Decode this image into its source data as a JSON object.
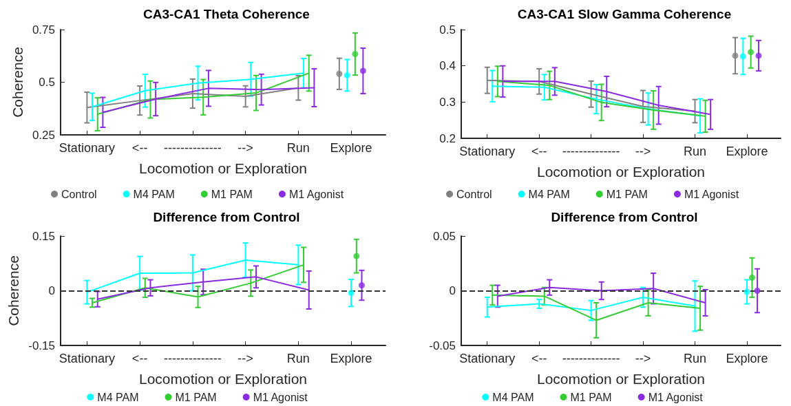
{
  "chart_data": [
    {
      "type": "line",
      "title": "CA3-CA1 Theta Coherence",
      "xlabel": "Locomotion or Exploration",
      "ylabel": "Coherence",
      "categories": [
        "Stationary",
        "<--",
        "--------------",
        "-->",
        "Run",
        "Explore"
      ],
      "ylim": [
        0.25,
        0.75
      ],
      "yticks": [
        0.25,
        0.5,
        0.75
      ],
      "grid": false,
      "legend": "bottom",
      "series": [
        {
          "name": "Control",
          "color": "#808080",
          "values": [
            0.38,
            0.413,
            0.446,
            0.433,
            0.473,
            null
          ],
          "errors": [
            0.073,
            0.069,
            0.069,
            0.05,
            0.058,
            null
          ]
        },
        {
          "name": "M4 PAM",
          "color": "#00ffff",
          "values": [
            0.383,
            0.46,
            0.496,
            0.514,
            0.543,
            null
          ],
          "errors": [
            0.065,
            0.078,
            0.08,
            0.08,
            0.07,
            null
          ]
        },
        {
          "name": "M1 PAM",
          "color": "#33cc33",
          "values": [
            0.348,
            0.418,
            0.429,
            0.449,
            0.543,
            null
          ],
          "errors": [
            0.078,
            0.088,
            0.084,
            0.083,
            0.085,
            null
          ]
        },
        {
          "name": "M1 Agonist",
          "color": "#8a2be2",
          "values": [
            0.357,
            0.42,
            0.471,
            0.465,
            0.474,
            null
          ],
          "errors": [
            0.071,
            0.079,
            0.085,
            0.073,
            0.09,
            null
          ]
        },
        {
          "type": "scatter",
          "marker": "circle",
          "color": "#808080",
          "values": [
            null,
            null,
            null,
            null,
            null,
            0.54
          ],
          "errors": [
            null,
            null,
            null,
            null,
            null,
            0.074
          ]
        },
        {
          "type": "scatter",
          "marker": "circle",
          "color": "#00ffff",
          "values": [
            null,
            null,
            null,
            null,
            null,
            0.533
          ],
          "errors": [
            null,
            null,
            null,
            null,
            null,
            0.075
          ]
        },
        {
          "type": "scatter",
          "marker": "circle",
          "color": "#33cc33",
          "values": [
            null,
            null,
            null,
            null,
            null,
            0.634
          ],
          "errors": [
            null,
            null,
            null,
            null,
            null,
            0.1
          ]
        },
        {
          "type": "scatter",
          "marker": "circle",
          "color": "#8a2be2",
          "values": [
            null,
            null,
            null,
            null,
            null,
            0.554
          ],
          "errors": [
            null,
            null,
            null,
            null,
            null,
            0.108
          ]
        }
      ]
    },
    {
      "type": "line",
      "title": "CA3-CA1 Slow Gamma Coherence",
      "xlabel": "Locomotion or Exploration",
      "categories": [
        "Stationary",
        "<--",
        "--------------",
        "-->",
        "Run",
        "Explore"
      ],
      "ylim": [
        0.2,
        0.5
      ],
      "yticks": [
        0.2,
        0.3,
        0.4,
        0.5
      ],
      "grid": false,
      "legend": "bottom",
      "series": [
        {
          "name": "Control",
          "color": "#808080",
          "values": [
            0.36,
            0.357,
            0.322,
            0.288,
            0.275,
            null
          ],
          "errors": [
            0.036,
            0.035,
            0.036,
            0.044,
            0.032,
            null
          ]
        },
        {
          "name": "M4 PAM",
          "color": "#00ffff",
          "values": [
            0.344,
            0.341,
            0.308,
            0.281,
            0.262,
            null
          ],
          "errors": [
            0.043,
            0.035,
            0.04,
            0.044,
            0.047,
            null
          ]
        },
        {
          "name": "M1 PAM",
          "color": "#33cc33",
          "values": [
            0.357,
            0.346,
            0.299,
            0.278,
            0.261,
            null
          ],
          "errors": [
            0.042,
            0.039,
            0.05,
            0.053,
            0.044,
            null
          ]
        },
        {
          "name": "M1 Agonist",
          "color": "#8a2be2",
          "values": [
            0.357,
            0.357,
            0.329,
            0.291,
            0.266,
            null
          ],
          "errors": [
            0.043,
            0.038,
            0.042,
            0.052,
            0.041,
            null
          ]
        },
        {
          "type": "scatter",
          "marker": "circle",
          "color": "#808080",
          "values": [
            null,
            null,
            null,
            null,
            null,
            0.428
          ],
          "errors": [
            null,
            null,
            null,
            null,
            null,
            0.05
          ]
        },
        {
          "type": "scatter",
          "marker": "circle",
          "color": "#00ffff",
          "values": [
            null,
            null,
            null,
            null,
            null,
            0.426
          ],
          "errors": [
            null,
            null,
            null,
            null,
            null,
            0.05
          ]
        },
        {
          "type": "scatter",
          "marker": "circle",
          "color": "#33cc33",
          "values": [
            null,
            null,
            null,
            null,
            null,
            0.438
          ],
          "errors": [
            null,
            null,
            null,
            null,
            null,
            0.044
          ]
        },
        {
          "type": "scatter",
          "marker": "circle",
          "color": "#8a2be2",
          "values": [
            null,
            null,
            null,
            null,
            null,
            0.428
          ],
          "errors": [
            null,
            null,
            null,
            null,
            null,
            0.042
          ]
        }
      ]
    },
    {
      "type": "line",
      "title": "Difference from Control",
      "xlabel": "Locomotion or Exploration",
      "ylabel": "Coherence",
      "categories": [
        "Stationary",
        "<--",
        "--------------",
        "-->",
        "Run",
        "Explore"
      ],
      "ylim": [
        -0.15,
        0.15
      ],
      "yticks": [
        -0.15,
        0,
        0.15
      ],
      "grid": false,
      "legend": "bottom",
      "ref_lines": [
        {
          "axis": "y",
          "value": 0,
          "color": "#333333",
          "line_style": "dashed"
        }
      ],
      "series": [
        {
          "name": "M4 PAM",
          "color": "#00ffff",
          "values": [
            -0.004,
            0.048,
            0.049,
            0.084,
            0.071,
            null
          ],
          "errors": [
            0.032,
            0.046,
            0.049,
            0.047,
            0.054,
            null
          ]
        },
        {
          "name": "M1 PAM",
          "color": "#33cc33",
          "values": [
            -0.033,
            0.008,
            -0.017,
            0.021,
            0.071,
            null
          ],
          "errors": [
            0.012,
            0.026,
            0.029,
            0.036,
            0.048,
            null
          ]
        },
        {
          "name": "M1 Agonist",
          "color": "#8a2be2",
          "values": [
            -0.023,
            0.008,
            0.024,
            0.038,
            0.002,
            null
          ],
          "errors": [
            0.021,
            0.022,
            0.035,
            0.03,
            0.052,
            null
          ]
        },
        {
          "type": "scatter",
          "marker": "circle",
          "color": "#00ffff",
          "values": [
            null,
            null,
            null,
            null,
            null,
            -0.006
          ],
          "errors": [
            null,
            null,
            null,
            null,
            null,
            0.037
          ]
        },
        {
          "type": "scatter",
          "marker": "circle",
          "color": "#33cc33",
          "values": [
            null,
            null,
            null,
            null,
            null,
            0.095
          ],
          "errors": [
            null,
            null,
            null,
            null,
            null,
            0.046
          ]
        },
        {
          "type": "scatter",
          "marker": "circle",
          "color": "#8a2be2",
          "values": [
            null,
            null,
            null,
            null,
            null,
            0.015
          ],
          "errors": [
            null,
            null,
            null,
            null,
            null,
            0.041
          ]
        }
      ]
    },
    {
      "type": "line",
      "title": "Difference from Control",
      "xlabel": "Locomotion or Exploration",
      "categories": [
        "Stationary",
        "<--",
        "--------------",
        "-->",
        "Run",
        "Explore"
      ],
      "ylim": [
        -0.05,
        0.05
      ],
      "yticks": [
        -0.05,
        0,
        0.05
      ],
      "grid": false,
      "legend": "bottom",
      "ref_lines": [
        {
          "axis": "y",
          "value": 0,
          "color": "#333333",
          "line_style": "dashed"
        }
      ],
      "series": [
        {
          "name": "M4 PAM",
          "color": "#00ffff",
          "values": [
            -0.015,
            -0.012,
            -0.018,
            -0.006,
            -0.014,
            null
          ],
          "errors": [
            0.009,
            0.004,
            0.009,
            0.009,
            0.023,
            null
          ]
        },
        {
          "name": "M1 PAM",
          "color": "#33cc33",
          "values": [
            -0.004,
            -0.005,
            -0.027,
            -0.011,
            -0.016,
            null
          ],
          "errors": [
            0.009,
            0.008,
            0.016,
            0.012,
            0.02,
            null
          ]
        },
        {
          "name": "M1 Agonist",
          "color": "#8a2be2",
          "values": [
            -0.005,
            0.003,
            0,
            0.002,
            -0.011,
            null
          ],
          "errors": [
            0.01,
            0.007,
            0.008,
            0.014,
            0.012,
            null
          ]
        },
        {
          "type": "scatter",
          "marker": "circle",
          "color": "#00ffff",
          "values": [
            null,
            null,
            null,
            null,
            null,
            -0.001
          ],
          "errors": [
            null,
            null,
            null,
            null,
            null,
            0.011
          ]
        },
        {
          "type": "scatter",
          "marker": "circle",
          "color": "#33cc33",
          "values": [
            null,
            null,
            null,
            null,
            null,
            0.012
          ],
          "errors": [
            null,
            null,
            null,
            null,
            null,
            0.018
          ]
        },
        {
          "type": "scatter",
          "marker": "circle",
          "color": "#8a2be2",
          "values": [
            null,
            null,
            null,
            null,
            null,
            0
          ],
          "errors": [
            null,
            null,
            null,
            null,
            null,
            0.02
          ]
        }
      ]
    }
  ]
}
